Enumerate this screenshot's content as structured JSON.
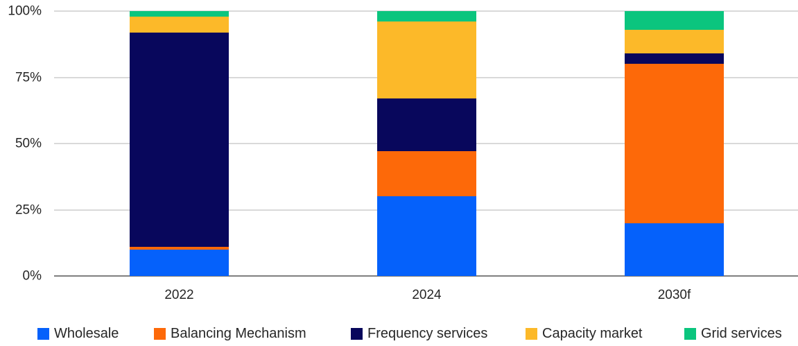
{
  "chart_data": {
    "type": "bar",
    "variant": "stacked-100-percent",
    "title": "",
    "xlabel": "",
    "ylabel": "",
    "categories": [
      "2022",
      "2024",
      "2030f"
    ],
    "series": [
      {
        "name": "Wholesale",
        "color": "#0561fb",
        "values": [
          10,
          30,
          20
        ]
      },
      {
        "name": "Balancing Mechanism",
        "color": "#fd6909",
        "values": [
          1,
          17,
          60
        ]
      },
      {
        "name": "Frequency services",
        "color": "#08075c",
        "values": [
          81,
          20,
          4
        ]
      },
      {
        "name": "Capacity market",
        "color": "#fcb929",
        "values": [
          6,
          29,
          9
        ]
      },
      {
        "name": "Grid services",
        "color": "#0bc57e",
        "values": [
          2,
          4,
          7
        ]
      }
    ],
    "yticks": [
      {
        "label": "0%",
        "value": 0
      },
      {
        "label": "25%",
        "value": 25
      },
      {
        "label": "50%",
        "value": 50
      },
      {
        "label": "75%",
        "value": 75
      },
      {
        "label": "100%",
        "value": 100
      }
    ],
    "ylim": [
      0,
      100
    ],
    "grid": true,
    "legend_position": "bottom"
  },
  "colors": {
    "gridline": "#d9d9d9",
    "axis_line": "#7f7f7f",
    "text": "#262626"
  }
}
